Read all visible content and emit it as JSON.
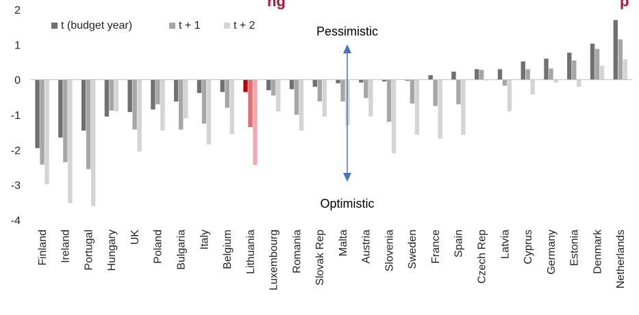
{
  "chart_data": {
    "type": "bar",
    "title": "ng",
    "title_right": "p",
    "categories": [
      "Finland",
      "Ireland",
      "Portugal",
      "Hungary",
      "UK",
      "Poland",
      "Bulgaria",
      "Italy",
      "Belgium",
      "Lithuania",
      "Luxembourg",
      "Romania",
      "Slovak Rep",
      "Malta",
      "Austria",
      "Slovenia",
      "Sweden",
      "France",
      "Spain",
      "Czech Rep",
      "Latvia",
      "Cyprus",
      "Germany",
      "Estonia",
      "Denmark",
      "Netherlands"
    ],
    "series": [
      {
        "name": "t (budget year)",
        "color": "#707070",
        "highlight_color": "#c00000",
        "values": [
          -1.95,
          -1.65,
          -1.45,
          -1.05,
          -0.92,
          -0.85,
          -0.62,
          -0.38,
          -0.35,
          -0.35,
          -0.3,
          -0.27,
          -0.2,
          -0.1,
          -0.08,
          -0.05,
          -0.03,
          0.13,
          0.23,
          0.3,
          0.3,
          0.52,
          0.6,
          0.77,
          1.03,
          1.7
        ]
      },
      {
        "name": "t + 1",
        "color": "#a6a6a6",
        "highlight_color": "#e06c75",
        "values": [
          -2.42,
          -2.35,
          -2.55,
          -0.88,
          -1.42,
          -0.7,
          -1.42,
          -1.25,
          -0.8,
          -1.35,
          -0.45,
          -1.0,
          -0.62,
          -0.62,
          -0.52,
          -1.2,
          -0.68,
          -0.75,
          -0.7,
          0.28,
          -0.17,
          0.3,
          0.32,
          0.55,
          0.88,
          1.15
        ]
      },
      {
        "name": "t + 2",
        "color": "#d4d4d4",
        "highlight_color": "#f4a7ad",
        "values": [
          -2.98,
          -3.52,
          -3.6,
          -0.9,
          -2.05,
          -1.45,
          -1.1,
          -1.85,
          -1.55,
          -2.43,
          -0.9,
          -1.45,
          -1.05,
          -1.3,
          -1.05,
          -2.1,
          -1.57,
          -1.68,
          -1.57,
          -0.02,
          -0.9,
          -0.42,
          -0.08,
          -0.2,
          0.4,
          0.58
        ]
      }
    ],
    "highlight_category": "Lithuania",
    "ylim": [
      -4,
      2
    ],
    "yticks": [
      "-4",
      "-3",
      "-2",
      "-1",
      "0",
      "1",
      "2"
    ],
    "legend_position": "top-left",
    "annotations": {
      "top": "Pessimistic",
      "bottom": "Optimistic",
      "arrow_color": "#4472c4"
    },
    "grid": false
  }
}
